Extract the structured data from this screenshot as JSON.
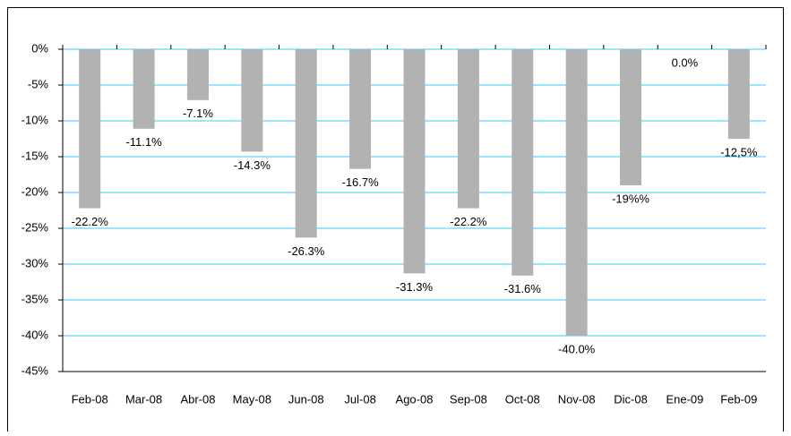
{
  "chart_data": {
    "type": "bar",
    "categories": [
      "Feb-08",
      "Mar-08",
      "Abr-08",
      "May-08",
      "Jun-08",
      "Jul-08",
      "Ago-08",
      "Sep-08",
      "Oct-08",
      "Nov-08",
      "Dic-08",
      "Ene-09",
      "Feb-09"
    ],
    "values": [
      -22.2,
      -11.1,
      -7.1,
      -14.3,
      -26.3,
      -16.7,
      -31.3,
      -22.2,
      -31.6,
      -40.0,
      -19,
      0.0,
      -12.5
    ],
    "value_labels": [
      "-22.2%",
      "-11.1%",
      "-7.1%",
      "-14.3%",
      "-26.3%",
      "-16.7%",
      "-31.3%",
      "-22.2%",
      "-31.6%",
      "-40.0%",
      "-19%%",
      "0.0%",
      "-12,5%"
    ],
    "color": "#b2b2b2",
    "ylim": [
      -45,
      0
    ],
    "yticks": [
      {
        "value": 0,
        "label": "0%"
      },
      {
        "value": -5,
        "label": "-5%"
      },
      {
        "value": -10,
        "label": "-10%"
      },
      {
        "value": -15,
        "label": "-15%"
      },
      {
        "value": -20,
        "label": "-20%"
      },
      {
        "value": -25,
        "label": "-25%"
      },
      {
        "value": -30,
        "label": "-30%"
      },
      {
        "value": -35,
        "label": "-35%"
      },
      {
        "value": -40,
        "label": "-40%"
      },
      {
        "value": -45,
        "label": "-45%"
      }
    ],
    "grid": true,
    "grid_color": "#33ccff"
  }
}
